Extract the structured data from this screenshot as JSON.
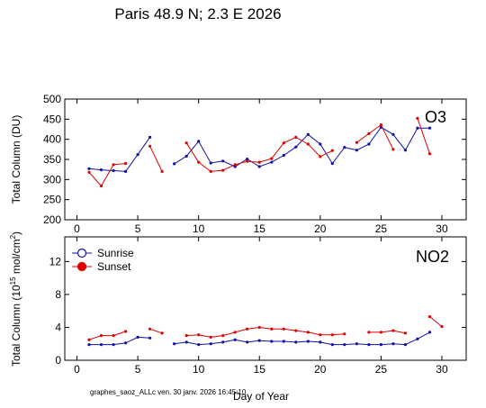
{
  "title": "Paris  48.9 N; 2.3 E   2026",
  "footer": "graphes_saoz_ALLc   ven. 30 janv. 2026 16:45:10",
  "xlabel": "Day of Year",
  "colors": {
    "sunrise": "#1010a8",
    "sunset": "#e00000"
  },
  "chart_data": [
    {
      "type": "line",
      "label": "O3",
      "ylabel": "Total Column  (DU)",
      "xlim": [
        -1,
        32
      ],
      "ylim": [
        200,
        500
      ],
      "xticks": [
        "0",
        "5",
        "10",
        "15",
        "20",
        "25",
        "30"
      ],
      "yticks": [
        "200",
        "250",
        "300",
        "350",
        "400",
        "450",
        "500"
      ],
      "grid": false,
      "series": [
        {
          "name": "Sunrise",
          "color": "#1010a8",
          "points": [
            [
              1,
              327
            ],
            [
              2,
              324
            ],
            [
              3,
              322
            ],
            [
              4,
              320
            ],
            [
              5,
              362
            ],
            [
              6,
              405
            ],
            null,
            [
              8,
              339
            ],
            [
              9,
              358
            ],
            [
              10,
              395
            ],
            [
              11,
              341
            ],
            [
              12,
              346
            ],
            [
              13,
              332
            ],
            [
              14,
              351
            ],
            [
              15,
              332
            ],
            [
              16,
              343
            ],
            [
              17,
              360
            ],
            [
              18,
              381
            ],
            [
              19,
              412
            ],
            [
              20,
              388
            ],
            [
              21,
              340
            ],
            [
              22,
              380
            ],
            [
              23,
              373
            ],
            [
              24,
              388
            ],
            [
              25,
              430
            ],
            [
              26,
              412
            ],
            [
              27,
              373
            ],
            [
              28,
              428
            ],
            [
              29,
              428
            ]
          ]
        },
        {
          "name": "Sunset",
          "color": "#e00000",
          "points": [
            [
              1,
              318
            ],
            [
              2,
              284
            ],
            [
              3,
              337
            ],
            [
              4,
              340
            ],
            null,
            [
              6,
              383
            ],
            [
              7,
              320
            ],
            null,
            [
              9,
              391
            ],
            [
              10,
              343
            ],
            [
              11,
              320
            ],
            [
              12,
              323
            ],
            [
              13,
              337
            ],
            [
              14,
              345
            ],
            [
              15,
              343
            ],
            [
              16,
              352
            ],
            [
              17,
              391
            ],
            [
              18,
              405
            ],
            [
              19,
              388
            ],
            [
              20,
              357
            ],
            [
              21,
              372
            ],
            null,
            [
              23,
              392
            ],
            [
              24,
              414
            ],
            [
              25,
              436
            ],
            [
              26,
              375
            ],
            null,
            [
              28,
              452
            ],
            [
              29,
              364
            ]
          ]
        }
      ]
    },
    {
      "type": "line",
      "label": "NO2",
      "ylabel": "Total Column (10^15 mol/cm^2)",
      "ylabel_parts": {
        "pre": "Total Column (10",
        "sup1": "15",
        "mid": " mol/cm",
        "sup2": "2",
        "post": ")"
      },
      "xlim": [
        -1,
        32
      ],
      "ylim": [
        0,
        15
      ],
      "xticks": [
        "0",
        "5",
        "10",
        "15",
        "20",
        "25",
        "30"
      ],
      "yticks": [
        "0",
        "4",
        "8",
        "12"
      ],
      "grid": false,
      "legend": {
        "position": "top-left",
        "entries": [
          "Sunrise",
          "Sunset"
        ]
      },
      "series": [
        {
          "name": "Sunrise",
          "color": "#1010a8",
          "points": [
            [
              1,
              1.9
            ],
            [
              2,
              1.9
            ],
            [
              3,
              1.9
            ],
            [
              4,
              2.1
            ],
            [
              5,
              2.8
            ],
            [
              6,
              2.7
            ],
            null,
            [
              8,
              2.0
            ],
            [
              9,
              2.2
            ],
            [
              10,
              1.9
            ],
            [
              11,
              2.0
            ],
            [
              12,
              2.2
            ],
            [
              13,
              2.5
            ],
            [
              14,
              2.2
            ],
            [
              15,
              2.4
            ],
            [
              16,
              2.3
            ],
            [
              17,
              2.3
            ],
            [
              18,
              2.2
            ],
            [
              19,
              2.3
            ],
            [
              20,
              2.2
            ],
            [
              21,
              1.9
            ],
            [
              22,
              1.9
            ],
            [
              23,
              2.0
            ],
            [
              24,
              1.9
            ],
            [
              25,
              1.9
            ],
            [
              26,
              2.0
            ],
            [
              27,
              1.9
            ],
            [
              28,
              2.6
            ],
            [
              29,
              3.4
            ]
          ]
        },
        {
          "name": "Sunset",
          "color": "#e00000",
          "points": [
            [
              1,
              2.5
            ],
            [
              2,
              3.0
            ],
            [
              3,
              3.0
            ],
            [
              4,
              3.5
            ],
            null,
            [
              6,
              3.8
            ],
            [
              7,
              3.3
            ],
            null,
            [
              9,
              3.0
            ],
            [
              10,
              3.1
            ],
            [
              11,
              2.8
            ],
            [
              12,
              3.0
            ],
            [
              13,
              3.4
            ],
            [
              14,
              3.8
            ],
            [
              15,
              4.0
            ],
            [
              16,
              3.8
            ],
            [
              17,
              3.8
            ],
            [
              18,
              3.6
            ],
            [
              19,
              3.4
            ],
            [
              20,
              3.1
            ],
            [
              21,
              3.1
            ],
            [
              22,
              3.2
            ],
            null,
            [
              24,
              3.4
            ],
            [
              25,
              3.4
            ],
            [
              26,
              3.6
            ],
            [
              27,
              3.3
            ],
            null,
            [
              29,
              5.3
            ],
            [
              30,
              4.1
            ]
          ]
        }
      ]
    }
  ]
}
